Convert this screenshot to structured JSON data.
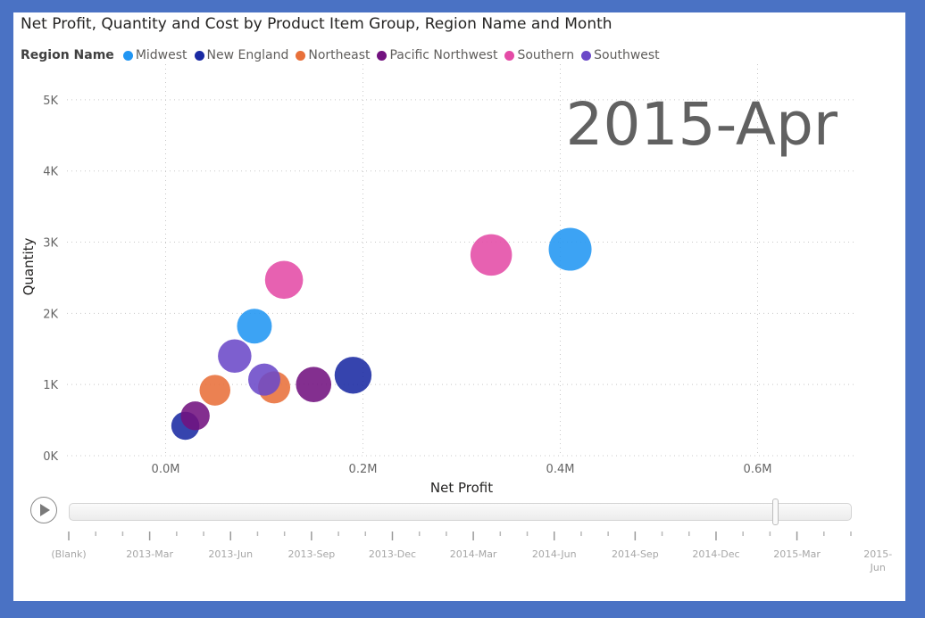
{
  "chart_data": {
    "type": "scatter",
    "title": "Net Profit, Quantity and Cost by Product Item Group, Region Name and Month",
    "xlabel": "Net Profit",
    "ylabel": "Quantity",
    "xlim": [
      -0.1,
      0.7
    ],
    "ylim": [
      0,
      5.5
    ],
    "x_ticks": [
      0.0,
      0.2,
      0.4,
      0.6
    ],
    "x_tick_labels": [
      "0.0M",
      "0.2M",
      "0.4M",
      "0.6M"
    ],
    "y_ticks": [
      0,
      1,
      2,
      3,
      4,
      5
    ],
    "y_tick_labels": [
      "0K",
      "1K",
      "2K",
      "3K",
      "4K",
      "5K"
    ],
    "grid": "dotted",
    "legend_title": "Region Name",
    "legend_position": "top-left",
    "play_axis_label": "2015-Apr",
    "series": [
      {
        "name": "Midwest",
        "color": "#2196f3",
        "points": [
          {
            "x": 0.41,
            "y": 2.9,
            "size": 1.0
          },
          {
            "x": 0.09,
            "y": 1.82,
            "size": 0.7
          }
        ]
      },
      {
        "name": "New England",
        "color": "#1a2aa3",
        "points": [
          {
            "x": 0.19,
            "y": 1.13,
            "size": 0.78
          },
          {
            "x": 0.02,
            "y": 0.42,
            "size": 0.45
          }
        ]
      },
      {
        "name": "Northeast",
        "color": "#e8703a",
        "points": [
          {
            "x": 0.11,
            "y": 0.96,
            "size": 0.6
          },
          {
            "x": 0.05,
            "y": 0.92,
            "size": 0.55
          }
        ]
      },
      {
        "name": "Pacific Northwest",
        "color": "#72127f",
        "points": [
          {
            "x": 0.15,
            "y": 1.0,
            "size": 0.72
          },
          {
            "x": 0.03,
            "y": 0.56,
            "size": 0.48
          }
        ]
      },
      {
        "name": "Southern",
        "color": "#e44ba6",
        "points": [
          {
            "x": 0.33,
            "y": 2.82,
            "size": 0.95
          },
          {
            "x": 0.12,
            "y": 2.47,
            "size": 0.82
          }
        ]
      },
      {
        "name": "Southwest",
        "color": "#6b49c8",
        "points": [
          {
            "x": 0.07,
            "y": 1.4,
            "size": 0.65
          },
          {
            "x": 0.1,
            "y": 1.07,
            "size": 0.6
          }
        ]
      }
    ]
  },
  "timeline": {
    "play_label": "Play",
    "current_index": 29,
    "labels": [
      "(Blank)",
      "2013-Mar",
      "2013-Jun",
      "2013-Sep",
      "2013-Dec",
      "2014-Mar",
      "2014-Jun",
      "2014-Sep",
      "2014-Dec",
      "2015-Mar",
      "2015-\nJun"
    ],
    "tick_count": 30
  }
}
